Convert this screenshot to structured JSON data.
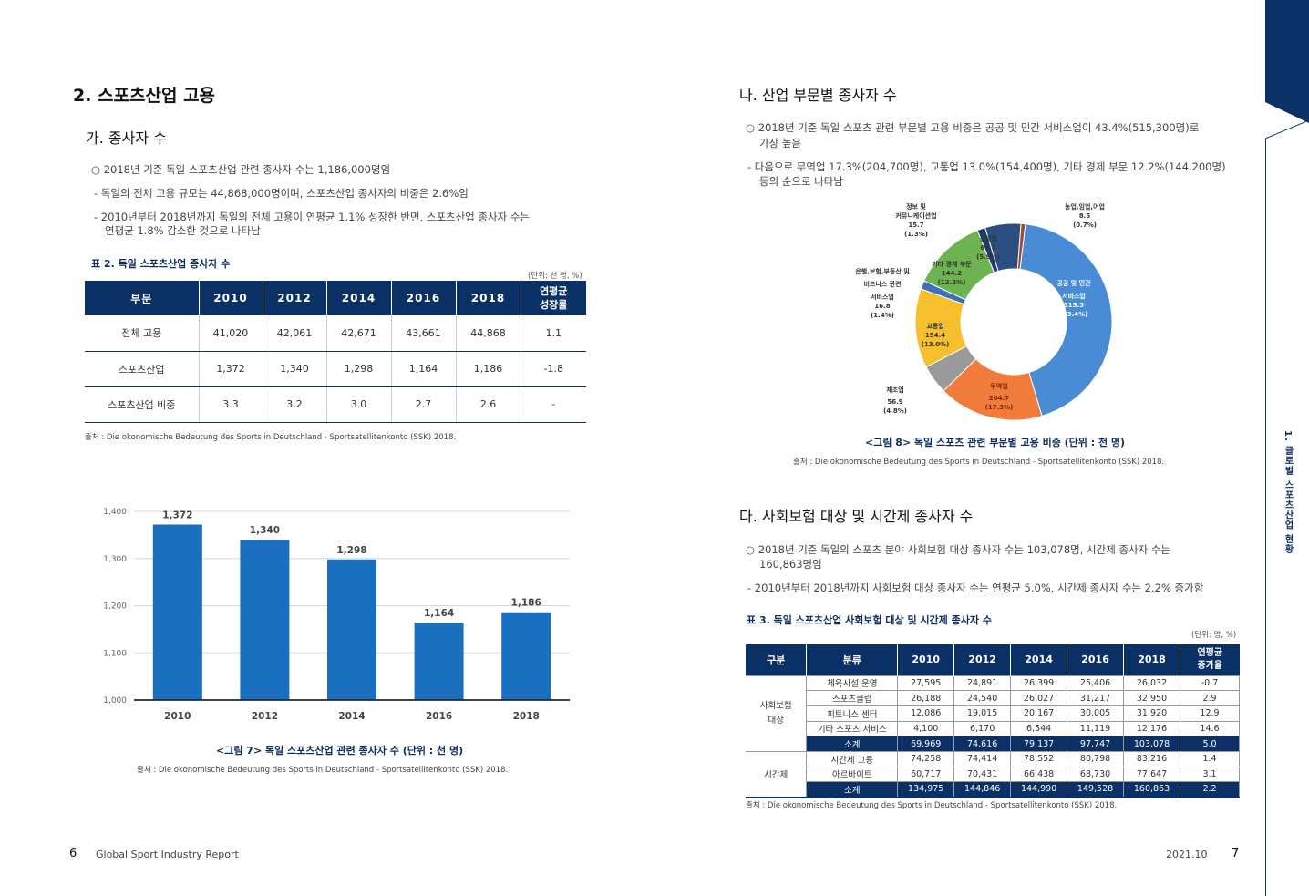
{
  "left": {
    "section_title": "2. 스포츠산업 고용",
    "sub_title": "가. 종사자 수",
    "bullet_main": "○ 2018년 기준 독일 스포츠산업 관련 종사자 수는 1,186,000명임",
    "bullet_sub1": "- 독일의 전체 고용 규모는 44,868,000명이며, 스포츠산업 종사자의 비중은 2.6%임",
    "bullet_sub2_line1": "- 2010년부터 2018년까지 독일의 전체 고용이 연평균 1.1% 성장한 반면, 스포츠산업 종사자 수는",
    "bullet_sub2_line2": "연평균 1.8% 감소한 것으로 나타남",
    "table_caption": "표 2. 독일 스포츠산업 종사자 수",
    "table_unit": "(단위: 천 명, %)",
    "table_headers": [
      "부문",
      "2010",
      "2012",
      "2014",
      "2016",
      "2018",
      "연평균",
      "성장률"
    ],
    "table_rows": [
      [
        "전체 고용",
        "41,020",
        "42,061",
        "42,671",
        "43,661",
        "44,868",
        "1.1"
      ],
      [
        "스포츠산업",
        "1,372",
        "1,340",
        "1,298",
        "1,164",
        "1,186",
        "-1.8"
      ],
      [
        "스포츠산업 비중",
        "3.3",
        "3.2",
        "3.0",
        "2.7",
        "2.6",
        "-"
      ]
    ],
    "table_source": "출처 : Die okonomische Bedeutung des Sports in Deutschland - Sportsatellitenkonto (SSK) 2018.",
    "figure_caption": "<그림 7> 독일 스포츠산업 관련 종사자 수 (단위 : 천 명)",
    "figure_source": "출처 : Die okonomische Bedeutung des Sports in Deutschland - Sportsatellitenkonto (SSK) 2018."
  },
  "right": {
    "sub_title_b": "나. 산업 부문별 종사자 수",
    "b_bullet_line1": "○ 2018년 기준 독일 스포츠 관련 부문별 고용 비중은 공공 및 민간 서비스업이 43.4%(515,300명)로",
    "b_bullet_line2": "가장 높음",
    "b_sub_line1": "- 다음으로 무역업 17.3%(204,700명), 교통업 13.0%(154,400명), 기타 경제 부문 12.2%(144,200명)",
    "b_sub_line2": "등의 순으로 나타남",
    "figure8_caption": "<그림 8> 독일 스포츠 관련 부문별 고용 비중 (단위 : 천 명)",
    "figure8_source": "출처 : Die okonomische Bedeutung des Sports in Deutschland - Sportsatellitenkonto (SSK) 2018.",
    "sub_title_c": "다. 사회보험 대상 및 시간제 종사자 수",
    "c_bullet_line1": "○ 2018년 기준 독일의 스포츠 분야 사회보험 대상 종사자 수는 103,078명, 시간제 종사자 수는",
    "c_bullet_line2": "160,863명임",
    "c_sub": "- 2010년부터 2018년까지 사회보험 대상 종사자 수는 연평균 5.0%, 시간제 종사자 수는 2.2% 증가함",
    "table3_caption": "표 3. 독일 스포츠산업 사회보험 대상 및 시간제 종사자 수",
    "table3_unit": "(단위: 명, %)",
    "table3_headers": [
      "구분",
      "분류",
      "2010",
      "2012",
      "2014",
      "2016",
      "2018",
      "연평균",
      "증가율"
    ],
    "table3_group1": [
      "사회보험",
      "대상"
    ],
    "table3_group2": "시간제",
    "table3_rows": [
      [
        "체육시설 운영",
        "27,595",
        "24,891",
        "26,399",
        "25,406",
        "26,032",
        "-0.7"
      ],
      [
        "스포츠클럽",
        "26,188",
        "24,540",
        "26,027",
        "31,217",
        "32,950",
        "2.9"
      ],
      [
        "피트니스 센터",
        "12,086",
        "19,015",
        "20,167",
        "30,005",
        "31,920",
        "12.9"
      ],
      [
        "기타 스포츠 서비스",
        "4,100",
        "6,170",
        "6,544",
        "11,119",
        "12,176",
        "14.6"
      ],
      [
        "소계",
        "69,969",
        "74,616",
        "79,137",
        "97,747",
        "103,078",
        "5.0"
      ],
      [
        "시간제 고용",
        "74,258",
        "74,414",
        "78,552",
        "80,798",
        "83,216",
        "1.4"
      ],
      [
        "아르바이트",
        "60,717",
        "70,431",
        "66,438",
        "68,730",
        "77,647",
        "3.1"
      ],
      [
        "소계",
        "134,975",
        "144,846",
        "144,990",
        "149,528",
        "160,863",
        "2.2"
      ]
    ],
    "table3_source": "출처 : Die okonomische Bedeutung des Sports in Deutschland - Sportsatellitenkonto (SSK) 2018.",
    "side_tab": "1. 글로벌 스포츠산업 현황"
  },
  "footer": {
    "left_page": "6",
    "left_title": "Global Sport Industry Report",
    "right_date": "2021.10",
    "right_page": "7"
  },
  "chart_data": [
    {
      "type": "bar",
      "title": "<그림 7> 독일 스포츠산업 관련 종사자 수 (단위 : 천 명)",
      "categories": [
        "2010",
        "2012",
        "2014",
        "2016",
        "2018"
      ],
      "values": [
        1372,
        1340,
        1298,
        1164,
        1186
      ],
      "value_labels": [
        "1,372",
        "1,340",
        "1,298",
        "1,164",
        "1,186"
      ],
      "y_ticks": [
        "1,000",
        "1,100",
        "1,200",
        "1,300",
        "1,400"
      ],
      "ylim": [
        1000,
        1400
      ],
      "color": "#1b6fbf"
    },
    {
      "type": "pie",
      "title": "<그림 8> 독일 스포츠 관련 부문별 고용 비중 (단위 : 천 명)",
      "slices": [
        {
          "name": "공공 및 민간 서비스업",
          "value": 515.3,
          "pct": "(43.4%)",
          "color": "#4a8bd6"
        },
        {
          "name": "무역업",
          "value": 204.7,
          "pct": "(17.3%)",
          "color": "#f07b3a"
        },
        {
          "name": "제조업",
          "value": 56.9,
          "pct": "(4.8%)",
          "color": "#9a9a9a"
        },
        {
          "name": "교통업",
          "value": 154.4,
          "pct": "(13.0%)",
          "color": "#f5bf2e"
        },
        {
          "name": "은행,보험,부동산 및 비즈니스 관련 서비스업",
          "value": 16.8,
          "pct": "(1.4%)",
          "color": "#3f6fb8"
        },
        {
          "name": "기타 경제 부문",
          "value": 144.2,
          "pct": "(12.2%)",
          "color": "#6db350"
        },
        {
          "name": "정보 및 커뮤니케이션업",
          "value": 15.7,
          "pct": "(1.3%)",
          "color": "#1f3e6e"
        },
        {
          "name": "건설업",
          "value": 69.7,
          "pct": "(5.9%)",
          "color": "#2a4f80"
        },
        {
          "name": "농업,임업,어업",
          "value": 8.5,
          "pct": "(0.7%)",
          "color": "#9e4a30"
        }
      ],
      "labels": {
        "info1": "정보 및",
        "info2": "커뮤니케이션업",
        "info_v": "15.7",
        "info_p": "(1.3%)",
        "agri": "농업,임업,어업",
        "agri_v": "8.5",
        "agri_p": "(0.7%)",
        "cons": "건설업",
        "cons_v": "69.7",
        "cons_p": "(5.9%)",
        "other": "기타 경제 부문",
        "other_v": "144.2",
        "other_p": "(12.2%)",
        "bank1": "은행,보험,부동산 및",
        "bank2": "비즈니스 관련",
        "bank3": "서비스업",
        "bank_v": "16.8",
        "bank_p": "(1.4%)",
        "pub1": "공공 및 민간",
        "pub2": "서비스업",
        "pub_v": "515.3",
        "pub_p": "(43.4%)",
        "trans": "교통업",
        "trans_v": "154.4",
        "trans_p": "(13.0%)",
        "manu": "제조업",
        "manu_v": "56.9",
        "manu_p": "(4.8%)",
        "trade": "무역업",
        "trade_v": "204.7",
        "trade_p": "(17.3%)"
      }
    }
  ]
}
